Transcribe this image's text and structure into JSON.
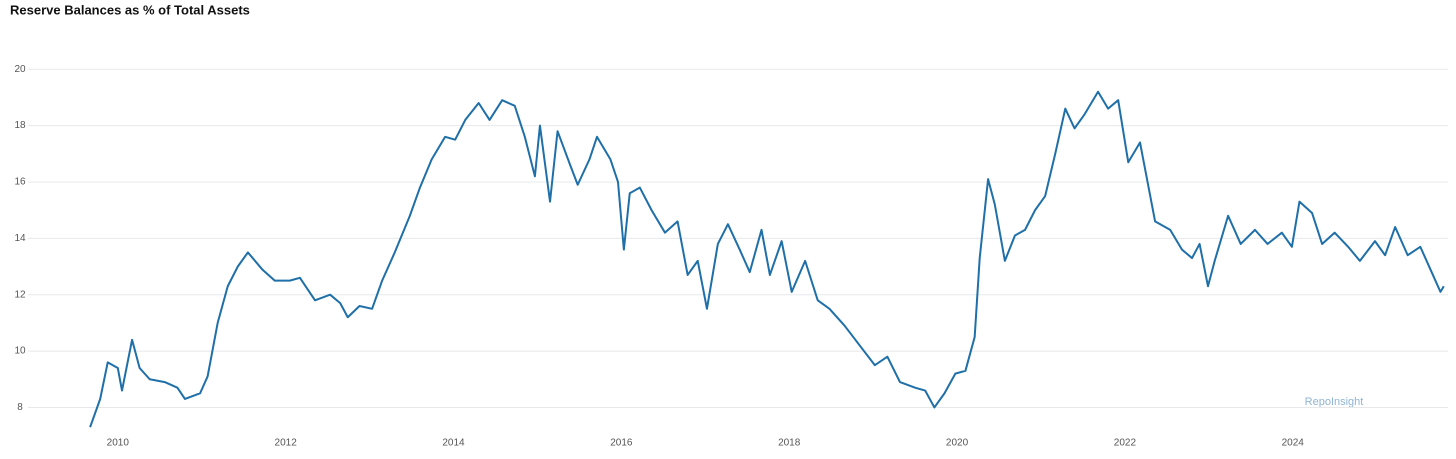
{
  "chart_data": {
    "type": "line",
    "title": "Reserve Balances as % of Total Assets",
    "watermark": "RepoInsight",
    "x": [
      2009.67,
      2009.79,
      2009.88,
      2010.0,
      2010.05,
      2010.17,
      2010.26,
      2010.38,
      2010.56,
      2010.71,
      2010.8,
      2010.98,
      2011.07,
      2011.19,
      2011.31,
      2011.43,
      2011.55,
      2011.72,
      2011.87,
      2012.05,
      2012.17,
      2012.35,
      2012.53,
      2012.65,
      2012.74,
      2012.88,
      2013.03,
      2013.15,
      2013.3,
      2013.48,
      2013.6,
      2013.74,
      2013.9,
      2014.02,
      2014.14,
      2014.3,
      2014.43,
      2014.58,
      2014.73,
      2014.85,
      2014.97,
      2015.03,
      2015.15,
      2015.24,
      2015.39,
      2015.48,
      2015.62,
      2015.71,
      2015.87,
      2015.96,
      2016.03,
      2016.1,
      2016.22,
      2016.36,
      2016.52,
      2016.67,
      2016.79,
      2016.91,
      2017.02,
      2017.15,
      2017.27,
      2017.41,
      2017.53,
      2017.67,
      2017.77,
      2017.91,
      2018.03,
      2018.19,
      2018.34,
      2018.48,
      2018.66,
      2018.84,
      2019.02,
      2019.17,
      2019.32,
      2019.5,
      2019.62,
      2019.73,
      2019.85,
      2019.98,
      2020.1,
      2020.21,
      2020.27,
      2020.37,
      2020.45,
      2020.57,
      2020.69,
      2020.81,
      2020.93,
      2021.05,
      2021.17,
      2021.29,
      2021.4,
      2021.52,
      2021.68,
      2021.8,
      2021.92,
      2022.04,
      2022.18,
      2022.27,
      2022.36,
      2022.54,
      2022.68,
      2022.8,
      2022.89,
      2022.99,
      2023.07,
      2023.23,
      2023.38,
      2023.55,
      2023.7,
      2023.87,
      2023.99,
      2024.08,
      2024.23,
      2024.35,
      2024.5,
      2024.66,
      2024.8,
      2024.98,
      2025.1,
      2025.22,
      2025.37,
      2025.52,
      2025.64,
      2025.76,
      2025.8
    ],
    "series": [
      {
        "name": "Reserve Balances as % of Total Assets",
        "color": "#1f6fa8",
        "values": [
          7.3,
          8.3,
          9.6,
          9.4,
          8.6,
          10.4,
          9.4,
          9.0,
          8.9,
          8.7,
          8.3,
          8.5,
          9.1,
          11.0,
          12.3,
          13.0,
          13.5,
          12.9,
          12.5,
          12.5,
          12.6,
          11.8,
          12.0,
          11.7,
          11.2,
          11.6,
          11.5,
          12.5,
          13.5,
          14.8,
          15.8,
          16.8,
          17.6,
          17.5,
          18.2,
          18.8,
          18.2,
          18.9,
          18.7,
          17.6,
          16.2,
          18.0,
          15.3,
          17.8,
          16.6,
          15.9,
          16.8,
          17.6,
          16.8,
          16.0,
          13.6,
          15.6,
          15.8,
          15.0,
          14.2,
          14.6,
          12.7,
          13.2,
          11.5,
          13.8,
          14.5,
          13.6,
          12.8,
          14.3,
          12.7,
          13.9,
          12.1,
          13.2,
          11.8,
          11.5,
          10.9,
          10.2,
          9.5,
          9.8,
          8.9,
          8.7,
          8.6,
          8.0,
          8.5,
          9.2,
          9.3,
          10.5,
          13.3,
          16.1,
          15.2,
          13.2,
          14.1,
          14.3,
          15.0,
          15.5,
          17.0,
          18.6,
          17.9,
          18.4,
          19.2,
          18.6,
          18.9,
          16.7,
          17.4,
          16.0,
          14.6,
          14.3,
          13.6,
          13.3,
          13.8,
          12.3,
          13.2,
          14.8,
          13.8,
          14.3,
          13.8,
          14.2,
          13.7,
          15.3,
          14.9,
          13.8,
          14.2,
          13.7,
          13.2,
          13.9,
          13.4,
          14.4,
          13.4,
          13.7,
          12.9,
          12.1,
          12.3
        ]
      }
    ],
    "xlim": [
      2008.93,
      2025.85
    ],
    "xticks": [
      2010,
      2012,
      2014,
      2016,
      2018,
      2020,
      2022,
      2024
    ],
    "ylim": [
      7.2,
      21
    ],
    "yticks": [
      8,
      10,
      12,
      14,
      16,
      18,
      20
    ],
    "grid": true
  }
}
